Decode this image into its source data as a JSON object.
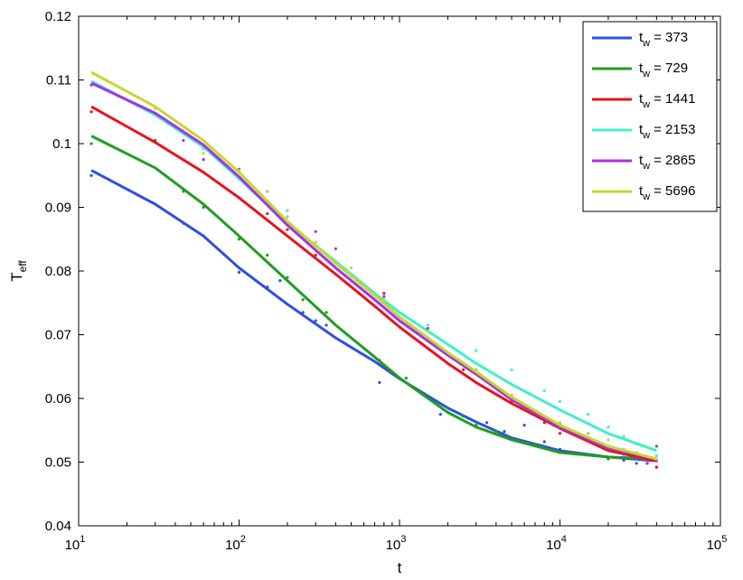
{
  "chart_data": {
    "type": "line",
    "xscale": "log",
    "xlabel": "t",
    "ylabel": "T",
    "ylabel_sub": "eff",
    "xlim": [
      10,
      100000
    ],
    "ylim": [
      0.04,
      0.12
    ],
    "x_ticks": [
      {
        "value": 10,
        "base": "10",
        "exp": "1"
      },
      {
        "value": 100,
        "base": "10",
        "exp": "2"
      },
      {
        "value": 1000,
        "base": "10",
        "exp": "3"
      },
      {
        "value": 10000,
        "base": "10",
        "exp": "4"
      },
      {
        "value": 100000,
        "base": "10",
        "exp": "5"
      }
    ],
    "y_ticks": [
      {
        "value": 0.04,
        "label": "0.04"
      },
      {
        "value": 0.05,
        "label": "0.05"
      },
      {
        "value": 0.06,
        "label": "0.06"
      },
      {
        "value": 0.07,
        "label": "0.07"
      },
      {
        "value": 0.08,
        "label": "0.08"
      },
      {
        "value": 0.09,
        "label": "0.09"
      },
      {
        "value": 0.1,
        "label": "0.1"
      },
      {
        "value": 0.11,
        "label": "0.11"
      },
      {
        "value": 0.12,
        "label": "0.12"
      }
    ],
    "grid": false,
    "legend_position": "top-right",
    "legend_prefix": "t",
    "legend_sub": "w",
    "series": [
      {
        "name": "= 373",
        "color": "#2f4fe0",
        "line": {
          "x": [
            12,
            30,
            60,
            100,
            200,
            400,
            700,
            1000,
            2000,
            3000,
            5000,
            10000,
            20000,
            40000
          ],
          "y": [
            0.0958,
            0.0905,
            0.0855,
            0.0805,
            0.0748,
            0.0695,
            0.0658,
            0.0631,
            0.0585,
            0.0563,
            0.0538,
            0.0518,
            0.0508,
            0.0502
          ]
        },
        "points": {
          "x": [
            12,
            45,
            60,
            100,
            150,
            180,
            250,
            300,
            350,
            750,
            1800,
            3500,
            4500,
            6000,
            8000,
            10000,
            15000,
            20000,
            25000,
            30000,
            35000,
            40000
          ],
          "y": [
            0.095,
            0.0875,
            0.0855,
            0.0798,
            0.0775,
            0.0785,
            0.0735,
            0.0722,
            0.0715,
            0.0625,
            0.0575,
            0.0562,
            0.0548,
            0.0558,
            0.0532,
            0.052,
            0.0512,
            0.0505,
            0.0503,
            0.0498,
            0.0505,
            0.0492
          ]
        }
      },
      {
        "name": "= 729",
        "color": "#1f9e1f",
        "line": {
          "x": [
            12,
            30,
            60,
            100,
            200,
            400,
            700,
            1000,
            2000,
            3000,
            5000,
            10000,
            20000,
            40000
          ],
          "y": [
            0.1012,
            0.0962,
            0.0905,
            0.0855,
            0.0785,
            0.0715,
            0.0665,
            0.0632,
            0.0578,
            0.0555,
            0.0535,
            0.0515,
            0.0508,
            0.0505
          ]
        },
        "points": {
          "x": [
            12,
            45,
            60,
            100,
            150,
            200,
            250,
            350,
            750,
            1100,
            2500,
            3000,
            4000,
            5000,
            7000,
            10000,
            15000,
            20000,
            30000,
            40000
          ],
          "y": [
            0.1,
            0.0925,
            0.09,
            0.085,
            0.0825,
            0.079,
            0.0755,
            0.0735,
            0.066,
            0.0632,
            0.0572,
            0.0558,
            0.0548,
            0.0535,
            0.0528,
            0.0515,
            0.0512,
            0.0505,
            0.0505,
            0.0525
          ]
        }
      },
      {
        "name": "= 1441",
        "color": "#e8131f",
        "line": {
          "x": [
            12,
            30,
            60,
            100,
            200,
            400,
            700,
            1000,
            2000,
            3000,
            5000,
            10000,
            20000,
            40000
          ],
          "y": [
            0.1058,
            0.1002,
            0.0955,
            0.0915,
            0.0855,
            0.0795,
            0.0745,
            0.0712,
            0.0655,
            0.0625,
            0.0592,
            0.0553,
            0.0518,
            0.0502
          ]
        },
        "points": {
          "x": [
            12,
            30,
            60,
            100,
            150,
            200,
            250,
            300,
            800,
            1500,
            2500,
            5000,
            8000,
            10000,
            15000,
            20000,
            25000,
            30000,
            35000,
            40000
          ],
          "y": [
            0.105,
            0.1005,
            0.0955,
            0.0915,
            0.089,
            0.0865,
            0.0855,
            0.0825,
            0.0765,
            0.0695,
            0.0645,
            0.0595,
            0.0562,
            0.0545,
            0.0535,
            0.0522,
            0.0515,
            0.0505,
            0.0498,
            0.0492
          ]
        }
      },
      {
        "name": "= 2153",
        "color": "#3ff0c8",
        "line": {
          "x": [
            12,
            30,
            60,
            100,
            200,
            400,
            700,
            1000,
            2000,
            3000,
            5000,
            10000,
            20000,
            40000
          ],
          "y": [
            0.1098,
            0.1045,
            0.0995,
            0.0945,
            0.0875,
            0.0815,
            0.0765,
            0.0735,
            0.0685,
            0.0655,
            0.0622,
            0.0582,
            0.0545,
            0.0518
          ]
        },
        "points": {
          "x": [
            30,
            60,
            100,
            150,
            200,
            300,
            500,
            800,
            1500,
            3000,
            5000,
            8000,
            10000,
            15000,
            20000,
            25000,
            30000,
            40000
          ],
          "y": [
            0.1045,
            0.0992,
            0.0945,
            0.0925,
            0.0895,
            0.084,
            0.0795,
            0.076,
            0.0715,
            0.0675,
            0.0645,
            0.0612,
            0.0595,
            0.0575,
            0.0555,
            0.054,
            0.0528,
            0.051
          ]
        }
      },
      {
        "name": "= 2865",
        "color": "#a533e8",
        "line": {
          "x": [
            12,
            30,
            60,
            100,
            200,
            400,
            700,
            1000,
            2000,
            3000,
            5000,
            10000,
            20000,
            40000
          ],
          "y": [
            0.1095,
            0.1048,
            0.0998,
            0.0948,
            0.0872,
            0.0805,
            0.0755,
            0.0722,
            0.0668,
            0.0638,
            0.0598,
            0.0555,
            0.0522,
            0.0505
          ]
        },
        "points": {
          "x": [
            12,
            45,
            60,
            100,
            150,
            200,
            300,
            400,
            800,
            1500,
            3000,
            5000,
            10000,
            15000,
            20000,
            25000,
            30000,
            35000,
            40000
          ],
          "y": [
            0.1092,
            0.1005,
            0.0975,
            0.096,
            0.0925,
            0.0885,
            0.0862,
            0.0835,
            0.076,
            0.071,
            0.0645,
            0.0605,
            0.056,
            0.0545,
            0.0525,
            0.0512,
            0.0505,
            0.0498,
            0.0502
          ]
        }
      },
      {
        "name": "= 5696",
        "color": "#c8d62e",
        "line": {
          "x": [
            12,
            30,
            60,
            100,
            200,
            400,
            700,
            1000,
            2000,
            3000,
            5000,
            10000,
            20000,
            40000
          ],
          "y": [
            0.1112,
            0.1058,
            0.1005,
            0.0955,
            0.0878,
            0.0812,
            0.0762,
            0.0728,
            0.0672,
            0.0642,
            0.0602,
            0.0558,
            0.0525,
            0.0505
          ]
        },
        "points": {
          "x": [
            30,
            60,
            100,
            150,
            200,
            300,
            500,
            800,
            1500,
            3000,
            5000,
            10000,
            15000,
            20000,
            25000,
            30000,
            40000
          ],
          "y": [
            0.1055,
            0.0985,
            0.0958,
            0.0925,
            0.0885,
            0.0845,
            0.0805,
            0.0755,
            0.0705,
            0.0645,
            0.0605,
            0.0562,
            0.0545,
            0.0535,
            0.052,
            0.0515,
            0.0505
          ]
        }
      }
    ]
  }
}
